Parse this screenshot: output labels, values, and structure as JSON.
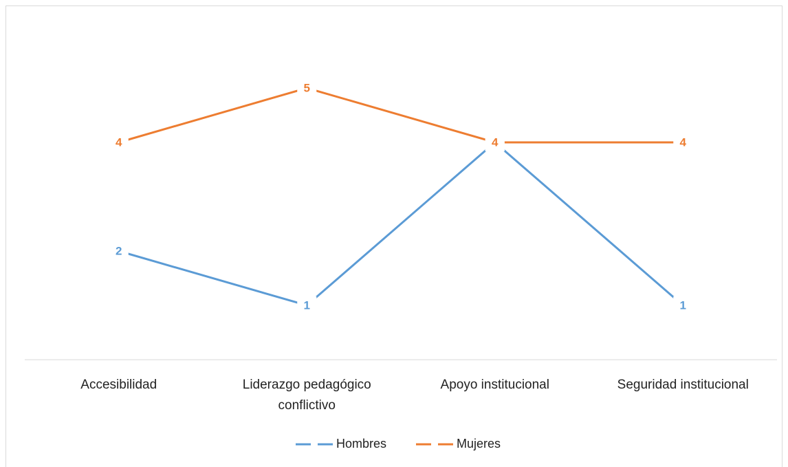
{
  "chart_data": {
    "type": "line",
    "categories": [
      "Accesibilidad",
      "Liderazgo pedagógico conflictivo",
      "Apoyo institucional",
      "Seguridad institucional"
    ],
    "series": [
      {
        "name": "Hombres",
        "color": "#5b9bd5",
        "values": [
          2,
          1,
          4,
          1
        ]
      },
      {
        "name": "Mujeres",
        "color": "#ed7d31",
        "values": [
          4,
          5,
          4,
          4
        ]
      }
    ],
    "ylim": [
      0,
      6
    ],
    "legend": "bottom"
  }
}
